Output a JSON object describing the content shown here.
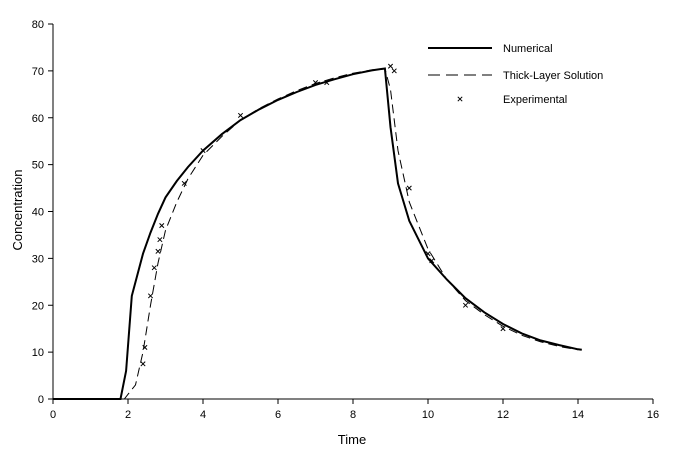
{
  "chart_data": {
    "type": "line",
    "title": "",
    "xlabel": "Time",
    "ylabel": "Concentration",
    "xlim": [
      0,
      16
    ],
    "ylim": [
      0,
      80
    ],
    "x_ticks": [
      "0",
      "2",
      "4",
      "6",
      "8",
      "10",
      "12",
      "14",
      "16"
    ],
    "y_ticks": [
      "0",
      "10",
      "20",
      "30",
      "40",
      "50",
      "60",
      "70",
      "80"
    ],
    "grid": false,
    "legend_position": "top-right",
    "series": [
      {
        "name": "Numerical",
        "style": "solid",
        "x": [
          0,
          1.8,
          1.95,
          2.1,
          2.4,
          2.6,
          2.8,
          3.0,
          3.3,
          3.6,
          4.0,
          4.5,
          5.0,
          5.5,
          6.0,
          6.5,
          7.0,
          7.5,
          8.0,
          8.5,
          8.85,
          9.0,
          9.2,
          9.5,
          10.0,
          10.5,
          11.0,
          11.5,
          12.0,
          12.5,
          13.0,
          13.5,
          14.0,
          14.1
        ],
        "y": [
          0,
          0,
          6,
          22,
          31,
          35.5,
          39.5,
          43,
          46.5,
          49.5,
          53,
          56.5,
          59.5,
          61.8,
          63.8,
          65.5,
          67,
          68.2,
          69.3,
          70.1,
          70.5,
          58,
          46,
          38,
          30,
          25.5,
          21.5,
          18.5,
          16,
          14,
          12.5,
          11.5,
          10.6,
          10.5
        ]
      },
      {
        "name": "Thick-Layer Solution",
        "style": "dashed",
        "x": [
          0,
          1.9,
          2.2,
          2.4,
          2.6,
          2.8,
          3.0,
          3.3,
          3.6,
          4.0,
          4.5,
          5.0,
          5.5,
          6.0,
          6.5,
          7.0,
          7.5,
          8.0,
          8.5,
          8.85,
          9.0,
          9.2,
          9.5,
          10.0,
          10.5,
          11.0,
          11.5,
          12.0,
          12.5,
          13.0,
          13.5,
          14.0
        ],
        "y": [
          0,
          0,
          3,
          10,
          20,
          29,
          36,
          42,
          47,
          52,
          56,
          59.5,
          62,
          64,
          65.8,
          67.3,
          68.5,
          69.5,
          70.2,
          70.5,
          66,
          53,
          42,
          32,
          25.5,
          21,
          18,
          15.5,
          13.6,
          12.2,
          11.2,
          10.5
        ]
      },
      {
        "name": "Experimental",
        "style": "markers",
        "x": [
          2.4,
          2.45,
          2.6,
          2.7,
          2.8,
          2.85,
          2.9,
          3.5,
          4.0,
          5.0,
          7.0,
          7.3,
          9.0,
          9.1,
          9.5,
          10.0,
          10.1,
          11.0,
          12.0
        ],
        "y": [
          7.5,
          11,
          22,
          28,
          31.5,
          34,
          37,
          46,
          53,
          60.5,
          67.5,
          67.5,
          71,
          70,
          45,
          31,
          29.5,
          20,
          15
        ]
      }
    ]
  }
}
